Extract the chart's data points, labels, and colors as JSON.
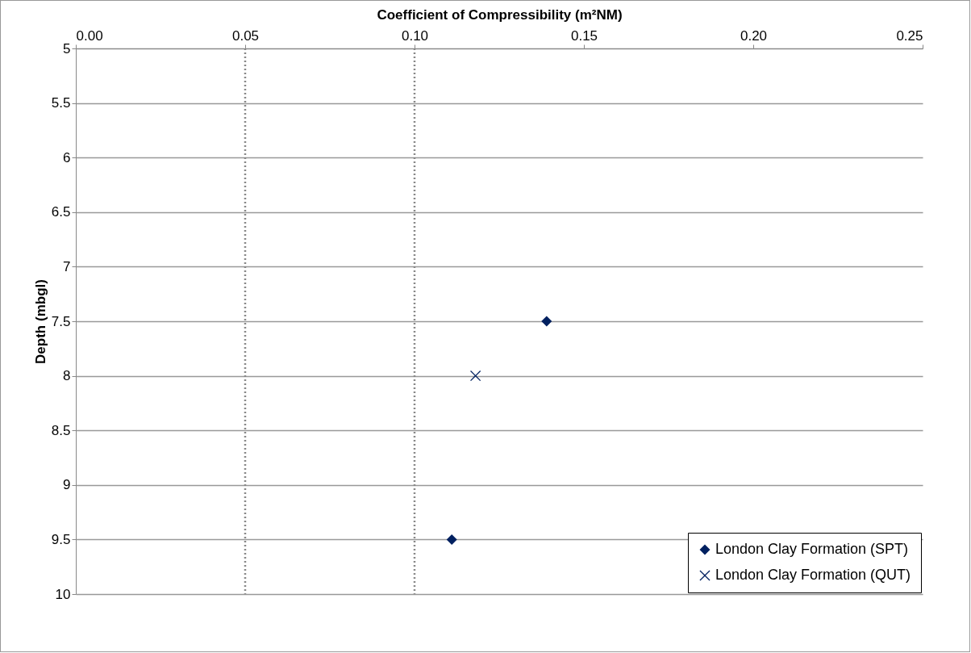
{
  "chart_data": {
    "type": "scatter",
    "xlabel": "Coefficient of Compressibility (m²NM)",
    "ylabel": "Depth (mbgl)",
    "xlim": [
      0,
      0.25
    ],
    "xticks": [
      {
        "value": 0,
        "label": "0.00"
      },
      {
        "value": 0.05,
        "label": "0.05"
      },
      {
        "value": 0.1,
        "label": "0.10"
      },
      {
        "value": 0.15,
        "label": "0.15"
      },
      {
        "value": 0.2,
        "label": "0.20"
      },
      {
        "value": 0.25,
        "label": "0.25"
      }
    ],
    "ylim": [
      10,
      5
    ],
    "yticks": [
      5,
      5.5,
      6,
      6.5,
      7,
      7.5,
      8,
      8.5,
      9,
      9.5,
      10
    ],
    "grid": "y",
    "legend": "bottom right",
    "ref_lines": [
      {
        "axis": "x",
        "value": 0.05,
        "color": "#888888",
        "line_style": "dotted"
      },
      {
        "axis": "x",
        "value": 0.1,
        "color": "#888888",
        "line_style": "dotted"
      }
    ],
    "series": [
      {
        "name": "London Clay Formation (SPT)",
        "color": "#002060",
        "marker": "diamond",
        "x": [
          0.139,
          0.111
        ],
        "values": [
          7.5,
          9.5
        ]
      },
      {
        "name": "London Clay Formation (QUT)",
        "color": "#002060",
        "marker": "cross",
        "x": [
          0.118
        ],
        "values": [
          8
        ]
      }
    ]
  }
}
